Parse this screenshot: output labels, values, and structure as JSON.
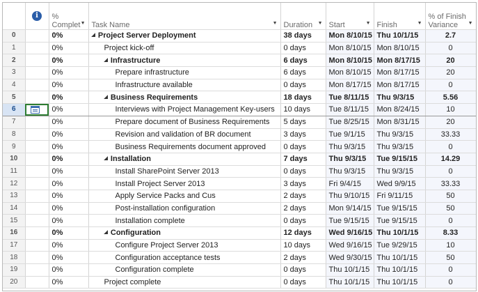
{
  "columns": {
    "info": "i",
    "pct_complete": "% Complet",
    "task_name": "Task Name",
    "duration": "Duration",
    "start": "Start",
    "finish": "Finish",
    "variance": "% of Finish Variance"
  },
  "header_pct_line1": "%",
  "header_pct_line2": "Complet",
  "header_var_line1": "% of Finish",
  "header_var_line2": "Variance",
  "selected_row": 6,
  "rows": [
    {
      "id": "0",
      "pct": "0%",
      "name": "Project Server Deployment",
      "duration": "38 days",
      "start": "Mon 8/10/15",
      "finish": "Thu 10/1/15",
      "variance": "2.7",
      "level": 0,
      "summary": true
    },
    {
      "id": "1",
      "pct": "0%",
      "name": "Project kick-off",
      "duration": "0 days",
      "start": "Mon 8/10/15",
      "finish": "Mon 8/10/15",
      "variance": "0",
      "level": 1,
      "summary": false
    },
    {
      "id": "2",
      "pct": "0%",
      "name": "Infrastructure",
      "duration": "6 days",
      "start": "Mon 8/10/15",
      "finish": "Mon 8/17/15",
      "variance": "20",
      "level": 1,
      "summary": true
    },
    {
      "id": "3",
      "pct": "0%",
      "name": "Prepare infrastructure",
      "duration": "6 days",
      "start": "Mon 8/10/15",
      "finish": "Mon 8/17/15",
      "variance": "20",
      "level": 2,
      "summary": false
    },
    {
      "id": "4",
      "pct": "0%",
      "name": "Infrastructure available",
      "duration": "0 days",
      "start": "Mon 8/17/15",
      "finish": "Mon 8/17/15",
      "variance": "0",
      "level": 2,
      "summary": false
    },
    {
      "id": "5",
      "pct": "0%",
      "name": "Business Requirements",
      "duration": "18 days",
      "start": "Tue 8/11/15",
      "finish": "Thu 9/3/15",
      "variance": "5.56",
      "level": 1,
      "summary": true
    },
    {
      "id": "6",
      "pct": "0%",
      "name": "Interviews with Project Management Key-users",
      "duration": "10 days",
      "start": "Tue 8/11/15",
      "finish": "Mon 8/24/15",
      "variance": "10",
      "level": 2,
      "summary": false
    },
    {
      "id": "7",
      "pct": "0%",
      "name": "Prepare document of Business Requirements",
      "duration": "5 days",
      "start": "Tue 8/25/15",
      "finish": "Mon 8/31/15",
      "variance": "20",
      "level": 2,
      "summary": false
    },
    {
      "id": "8",
      "pct": "0%",
      "name": "Revision and validation of BR document",
      "duration": "3 days",
      "start": "Tue 9/1/15",
      "finish": "Thu 9/3/15",
      "variance": "33.33",
      "level": 2,
      "summary": false
    },
    {
      "id": "9",
      "pct": "0%",
      "name": "Business Requirements document approved",
      "duration": "0 days",
      "start": "Thu 9/3/15",
      "finish": "Thu 9/3/15",
      "variance": "0",
      "level": 2,
      "summary": false
    },
    {
      "id": "10",
      "pct": "0%",
      "name": "Installation",
      "duration": "7 days",
      "start": "Thu 9/3/15",
      "finish": "Tue 9/15/15",
      "variance": "14.29",
      "level": 1,
      "summary": true
    },
    {
      "id": "11",
      "pct": "0%",
      "name": "Install SharePoint Server 2013",
      "duration": "0 days",
      "start": "Thu 9/3/15",
      "finish": "Thu 9/3/15",
      "variance": "0",
      "level": 2,
      "summary": false
    },
    {
      "id": "12",
      "pct": "0%",
      "name": "Install Project Server 2013",
      "duration": "3 days",
      "start": "Fri 9/4/15",
      "finish": "Wed 9/9/15",
      "variance": "33.33",
      "level": 2,
      "summary": false
    },
    {
      "id": "13",
      "pct": "0%",
      "name": "Apply Service Packs and Cus",
      "duration": "2 days",
      "start": "Thu 9/10/15",
      "finish": "Fri 9/11/15",
      "variance": "50",
      "level": 2,
      "summary": false
    },
    {
      "id": "14",
      "pct": "0%",
      "name": "Post-installation configuration",
      "duration": "2 days",
      "start": "Mon 9/14/15",
      "finish": "Tue 9/15/15",
      "variance": "50",
      "level": 2,
      "summary": false
    },
    {
      "id": "15",
      "pct": "0%",
      "name": "Installation complete",
      "duration": "0 days",
      "start": "Tue 9/15/15",
      "finish": "Tue 9/15/15",
      "variance": "0",
      "level": 2,
      "summary": false
    },
    {
      "id": "16",
      "pct": "0%",
      "name": "Configuration",
      "duration": "12 days",
      "start": "Wed 9/16/15",
      "finish": "Thu 10/1/15",
      "variance": "8.33",
      "level": 1,
      "summary": true
    },
    {
      "id": "17",
      "pct": "0%",
      "name": "Configure Project Server 2013",
      "duration": "10 days",
      "start": "Wed 9/16/15",
      "finish": "Tue 9/29/15",
      "variance": "10",
      "level": 2,
      "summary": false
    },
    {
      "id": "18",
      "pct": "0%",
      "name": "Configuration acceptance tests",
      "duration": "2 days",
      "start": "Wed 9/30/15",
      "finish": "Thu 10/1/15",
      "variance": "50",
      "level": 2,
      "summary": false
    },
    {
      "id": "19",
      "pct": "0%",
      "name": "Configuration complete",
      "duration": "0 days",
      "start": "Thu 10/1/15",
      "finish": "Thu 10/1/15",
      "variance": "0",
      "level": 2,
      "summary": false
    },
    {
      "id": "20",
      "pct": "0%",
      "name": "Project complete",
      "duration": "0 days",
      "start": "Thu 10/1/15",
      "finish": "Thu 10/1/15",
      "variance": "0",
      "level": 1,
      "summary": false
    }
  ]
}
